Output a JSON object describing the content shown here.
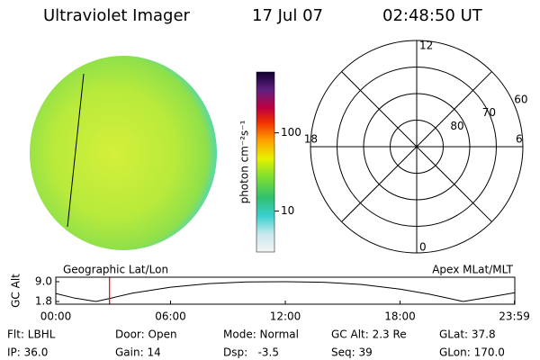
{
  "header": {
    "instrument": "Ultraviolet Imager",
    "date": "17 Jul 07",
    "time": "02:48:50 UT"
  },
  "colorbar": {
    "label": "photon cm⁻²s⁻¹",
    "lim": [
      3,
      600
    ],
    "log": true,
    "ticks": [
      10,
      100
    ]
  },
  "polar": {
    "rlim": [
      90,
      50
    ],
    "rings": [
      80,
      70,
      60
    ],
    "mlt": [
      12,
      18,
      6,
      0
    ]
  },
  "panel": {
    "ylabel": "GC Alt",
    "left_title": "Geographic Lat/Lon",
    "right_title": "Apex MLat/MLT",
    "xlim": [
      0,
      24
    ],
    "ylim": [
      1.8,
      9.0
    ],
    "xticks": [
      {
        "value": 0,
        "label": "00:00"
      },
      {
        "value": 6,
        "label": "06:00"
      },
      {
        "value": 12,
        "label": "12:00"
      },
      {
        "value": 18,
        "label": "18:00"
      },
      {
        "value": 23.98,
        "label": "23:59"
      }
    ],
    "yticks": [
      {
        "value": 9.0,
        "label": "9.0"
      },
      1.8
    ],
    "x": [
      0,
      1,
      2.1,
      3,
      4,
      6,
      8,
      10,
      12,
      14,
      16,
      18,
      19.5,
      20.5,
      21.3,
      22.5,
      24
    ],
    "values": [
      4.7,
      3.0,
      1.8,
      3.2,
      4.8,
      7.0,
      8.3,
      8.9,
      9.0,
      8.8,
      8.0,
      6.3,
      4.5,
      3.0,
      1.8,
      3.2,
      5.0
    ],
    "marker": 2.81,
    "color": "#000000",
    "marker_color": "#e00000"
  },
  "info": [
    [
      "Flt: LBHL",
      "IP: 36.0"
    ],
    [
      "Door: Open",
      "Gain: 14"
    ],
    [
      "Mode: Normal",
      "Dsp:   -3.5"
    ],
    [
      "GC Alt: 2.3 Re",
      "Seq: 39"
    ],
    [
      "GLat: 37.8",
      "GLon: 170.0"
    ]
  ]
}
